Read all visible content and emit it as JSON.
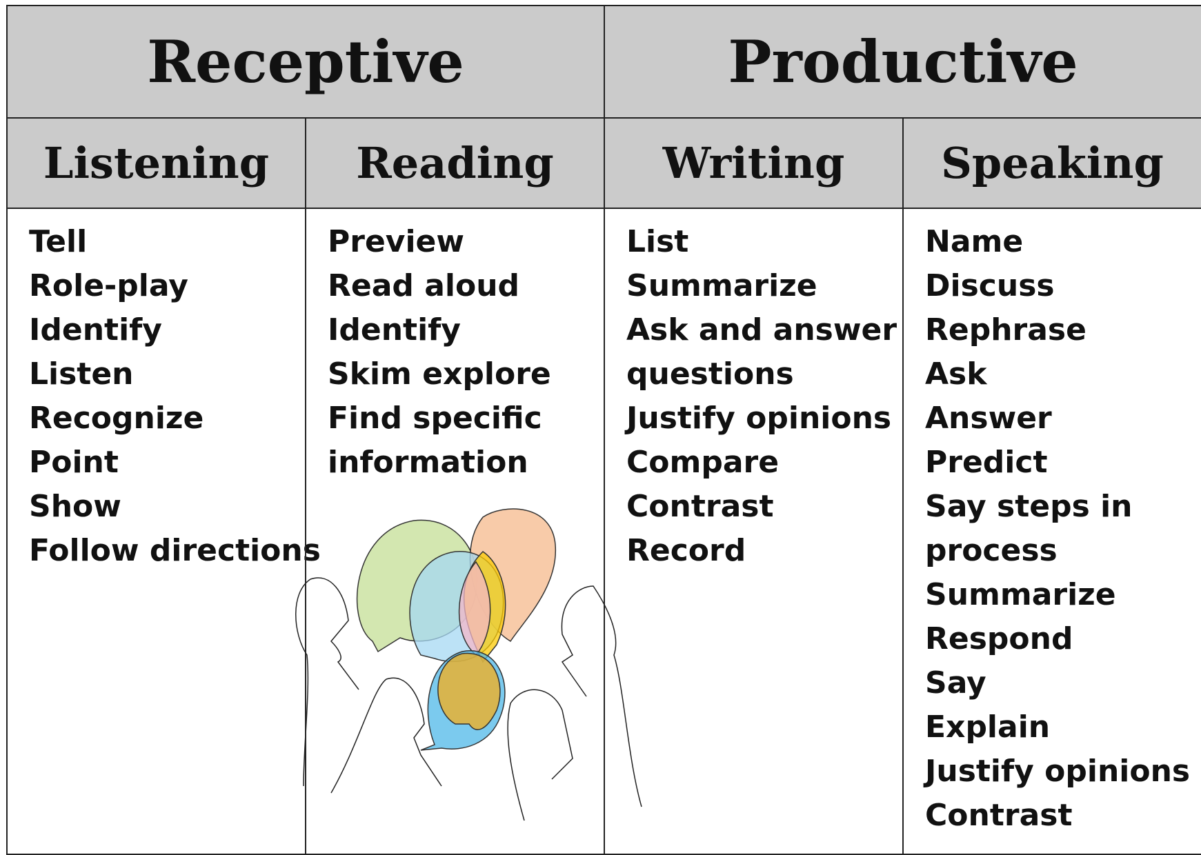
{
  "groups": [
    "Receptive",
    "Productive"
  ],
  "columns": [
    {
      "title": "Listening",
      "items": [
        "Tell",
        "Role-play",
        "Identify",
        "Listen",
        "Recognize",
        "Point",
        "Show",
        "Follow directions"
      ]
    },
    {
      "title": "Reading",
      "items": [
        "Preview",
        "Read aloud",
        "Identify",
        "Skim explore",
        "Find specific",
        "information"
      ]
    },
    {
      "title": "Writing",
      "items": [
        "List",
        "Summarize",
        "Ask and answer",
        "questions",
        "Justify opinions",
        "Compare",
        "Contrast",
        "Record"
      ]
    },
    {
      "title": "Speaking",
      "items": [
        "Name",
        "Discuss",
        "Rephrase",
        "Ask",
        "Answer",
        "Predict",
        "Say steps in",
        "process",
        "Summarize",
        "Respond",
        "Say",
        "Explain",
        "Justify opinions",
        "Contrast"
      ]
    }
  ]
}
